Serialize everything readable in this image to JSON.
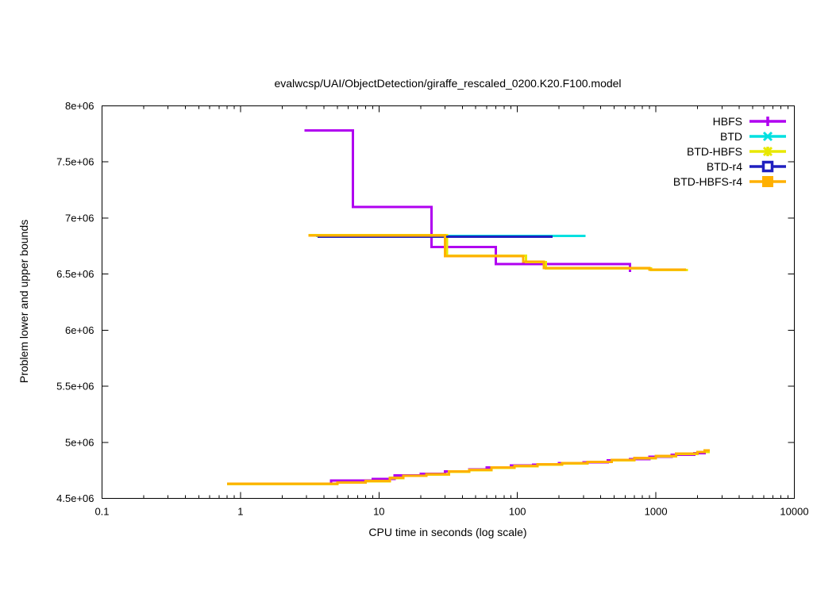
{
  "chart_data": {
    "type": "line",
    "title": "evalwcsp/UAI/ObjectDetection/giraffe_rescaled_0200.K20.F100.model",
    "xlabel": "CPU time in seconds (log scale)",
    "ylabel": "Problem lower and upper bounds",
    "grid": false,
    "legend_position": "top-right-inside",
    "x_axis": {
      "scale": "log",
      "min": 0.1,
      "max": 10000,
      "ticks": [
        {
          "v": 0.1,
          "label": "0.1"
        },
        {
          "v": 1,
          "label": "1"
        },
        {
          "v": 10,
          "label": "10"
        },
        {
          "v": 100,
          "label": "100"
        },
        {
          "v": 1000,
          "label": "1000"
        },
        {
          "v": 10000,
          "label": "10000"
        }
      ]
    },
    "y_axis": {
      "scale": "linear",
      "min": 4500000,
      "max": 8000000,
      "ticks": [
        {
          "v": 4500000,
          "label": "4.5e+06"
        },
        {
          "v": 5000000,
          "label": "5e+06"
        },
        {
          "v": 5500000,
          "label": "5.5e+06"
        },
        {
          "v": 6000000,
          "label": "6e+06"
        },
        {
          "v": 6500000,
          "label": "6.5e+06"
        },
        {
          "v": 7000000,
          "label": "7e+06"
        },
        {
          "v": 7500000,
          "label": "7.5e+06"
        },
        {
          "v": 8000000,
          "label": "8e+06"
        }
      ]
    },
    "series": [
      {
        "name": "HBFS",
        "color": "#b000f0",
        "marker": "plus",
        "upper_bound": {
          "points": [
            [
              2.9,
              7780000
            ],
            [
              6.5,
              7100000
            ],
            [
              24,
              6740000
            ],
            [
              70,
              6590000
            ],
            [
              650,
              6520000
            ]
          ],
          "t_end": 650
        },
        "lower_bound": {
          "points": [
            [
              0.8,
              4632000
            ],
            [
              4.5,
              4660000
            ],
            [
              9,
              4672000
            ],
            [
              13,
              4705000
            ],
            [
              20,
              4718000
            ],
            [
              30,
              4740000
            ],
            [
              45,
              4758000
            ],
            [
              60,
              4775000
            ],
            [
              90,
              4792000
            ],
            [
              130,
              4801000
            ],
            [
              200,
              4815000
            ],
            [
              300,
              4822000
            ],
            [
              450,
              4838000
            ],
            [
              650,
              4850000
            ],
            [
              900,
              4870000
            ],
            [
              1300,
              4888000
            ],
            [
              1900,
              4902000
            ]
          ],
          "t_end": 2300
        }
      },
      {
        "name": "BTD",
        "color": "#00e0e0",
        "marker": "cross",
        "upper_bound": {
          "points": [
            [
              3.5,
              6840000
            ]
          ],
          "t_end": 310
        },
        "lower_bound": null
      },
      {
        "name": "BTD-HBFS",
        "color": "#e8e800",
        "marker": "asterisk",
        "upper_bound": {
          "points": [
            [
              3.1,
              6848000
            ],
            [
              31,
              6662000
            ],
            [
              115,
              6608000
            ],
            [
              160,
              6552000
            ],
            [
              920,
              6536000
            ]
          ],
          "t_end": 1700
        },
        "lower_bound": {
          "points": [
            [
              0.8,
              4628000
            ],
            [
              5,
              4640000
            ],
            [
              8,
              4652000
            ],
            [
              12,
              4682000
            ],
            [
              15,
              4700000
            ],
            [
              22,
              4712000
            ],
            [
              32,
              4738000
            ],
            [
              45,
              4752000
            ],
            [
              65,
              4772000
            ],
            [
              95,
              4788000
            ],
            [
              140,
              4802000
            ],
            [
              210,
              4812000
            ],
            [
              320,
              4824000
            ],
            [
              480,
              4840000
            ],
            [
              700,
              4858000
            ],
            [
              1000,
              4875000
            ],
            [
              1400,
              4895000
            ],
            [
              2000,
              4912000
            ]
          ],
          "t_end": 2450
        }
      },
      {
        "name": "BTD-r4",
        "color": "#2020c0",
        "marker": "square-open",
        "upper_bound": {
          "points": [
            [
              3.6,
              6833000
            ]
          ],
          "t_end": 180
        },
        "lower_bound": null
      },
      {
        "name": "BTD-HBFS-r4",
        "color": "#ffb000",
        "marker": "square-filled",
        "upper_bound": {
          "points": [
            [
              3.1,
              6845000
            ],
            [
              30,
              6660000
            ],
            [
              110,
              6612000
            ],
            [
              155,
              6555000
            ],
            [
              900,
              6540000
            ]
          ],
          "t_end": 1650
        },
        "lower_bound": {
          "points": [
            [
              0.8,
              4631000
            ],
            [
              5,
              4643000
            ],
            [
              8,
              4655000
            ],
            [
              12,
              4685000
            ],
            [
              15,
              4703000
            ],
            [
              22,
              4715000
            ],
            [
              32,
              4741000
            ],
            [
              45,
              4755000
            ],
            [
              65,
              4775000
            ],
            [
              95,
              4791000
            ],
            [
              140,
              4805000
            ],
            [
              210,
              4815000
            ],
            [
              320,
              4827000
            ],
            [
              480,
              4843000
            ],
            [
              700,
              4861000
            ],
            [
              1000,
              4878000
            ],
            [
              1400,
              4898000
            ],
            [
              2000,
              4915000
            ],
            [
              2250,
              4927000
            ]
          ],
          "t_end": 2450
        }
      }
    ]
  }
}
